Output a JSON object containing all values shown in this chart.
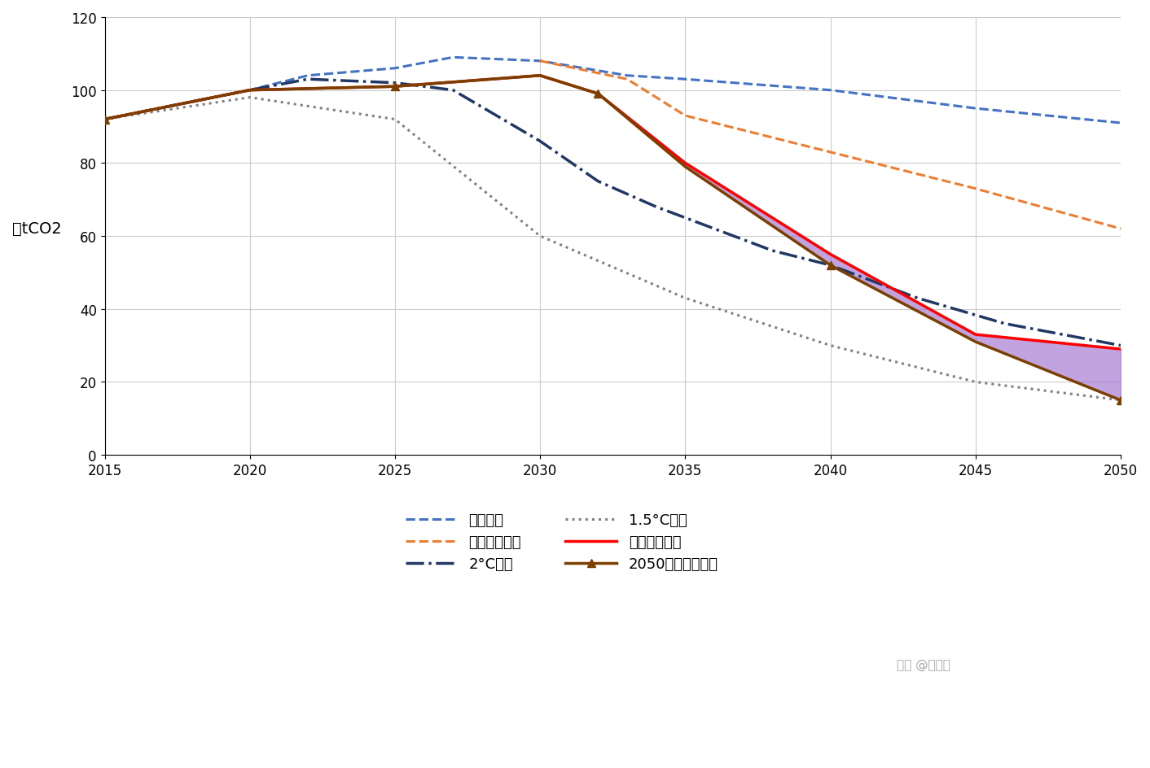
{
  "ylabel": "亿tCO2",
  "xlim": [
    2015,
    2050
  ],
  "ylim": [
    0,
    120
  ],
  "yticks": [
    0,
    20,
    40,
    60,
    80,
    100,
    120
  ],
  "xticks": [
    2015,
    2020,
    2025,
    2030,
    2035,
    2040,
    2045,
    2050
  ],
  "bg_color": "#ffffff",
  "grid_color": "#cccccc",
  "policy_x": [
    2015,
    2020,
    2022,
    2025,
    2027,
    2030,
    2033,
    2035,
    2040,
    2045,
    2050
  ],
  "policy_y": [
    92,
    100,
    104,
    106,
    109,
    108,
    104,
    103,
    100,
    95,
    91
  ],
  "strong_policy_x": [
    2030,
    2033,
    2035,
    2040,
    2045,
    2050
  ],
  "strong_policy_y": [
    108,
    103,
    93,
    83,
    73,
    62
  ],
  "two_deg_x": [
    2015,
    2020,
    2022,
    2025,
    2027,
    2030,
    2032,
    2034,
    2036,
    2038,
    2040,
    2043,
    2046,
    2050
  ],
  "two_deg_y": [
    92,
    100,
    103,
    102,
    100,
    86,
    75,
    68,
    62,
    56,
    52,
    43,
    36,
    30
  ],
  "one5_deg_x": [
    2015,
    2020,
    2025,
    2030,
    2035,
    2040,
    2045,
    2050
  ],
  "one5_deg_y": [
    92,
    98,
    92,
    60,
    43,
    30,
    20,
    15
  ],
  "low_carbon_x": [
    2015,
    2020,
    2025,
    2030,
    2032,
    2035,
    2040,
    2045,
    2050
  ],
  "low_carbon_y": [
    92,
    100,
    101,
    104,
    99,
    80,
    55,
    33,
    29
  ],
  "net_zero_x": [
    2015,
    2020,
    2025,
    2030,
    2032,
    2035,
    2040,
    2045,
    2050
  ],
  "net_zero_y": [
    92,
    100,
    101,
    104,
    99,
    79,
    52,
    31,
    15
  ],
  "policy_color": "#4472C4",
  "strong_policy_color": "#ED7D31",
  "two_deg_color": "#203864",
  "one5_deg_color": "#808080",
  "low_carbon_color": "#FF0000",
  "net_zero_color": "#7B3F00",
  "fill_color": "#9966CC",
  "fill_alpha": 0.6,
  "label_policy": "政策情景",
  "label_strong_policy": "强化政策情景",
  "label_two_deg": "2°C情景",
  "label_one5_deg": "1.5°C情景",
  "label_low_carbon": "长期低碳转型",
  "label_net_zero": "2050净零排放情景",
  "watermark": "知乎 @月球人"
}
